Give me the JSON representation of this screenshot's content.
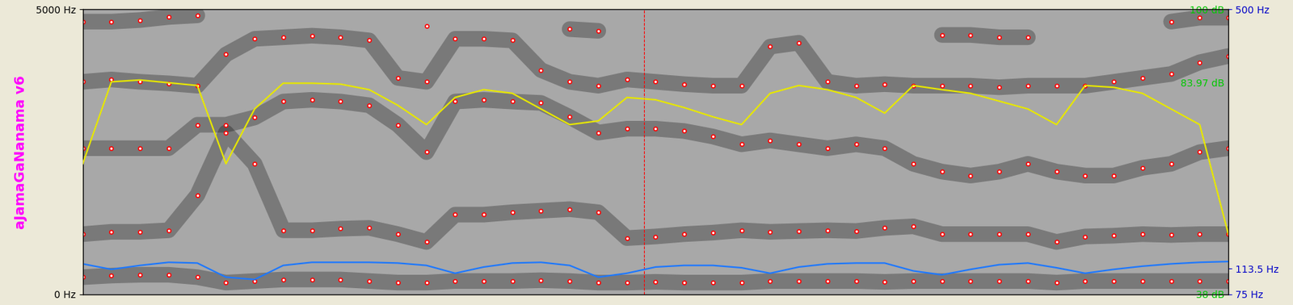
{
  "chart_data": {
    "type": "spectrogram",
    "title": "aJamaGaNanama v6",
    "x": [
      0,
      0.025,
      0.05,
      0.075,
      0.1,
      0.125,
      0.15,
      0.175,
      0.2,
      0.225,
      0.25,
      0.275,
      0.3,
      0.325,
      0.35,
      0.375,
      0.4,
      0.425,
      0.45,
      0.475,
      0.5,
      0.525,
      0.55,
      0.575,
      0.6,
      0.625,
      0.65,
      0.675,
      0.7,
      0.725,
      0.75,
      0.775,
      0.8,
      0.825,
      0.85,
      0.875,
      0.9,
      0.925,
      0.95,
      0.975,
      1
    ],
    "xlim": [
      0,
      1
    ],
    "ylim": [
      0,
      5000
    ],
    "yticks": [
      {
        "value": 0,
        "label": "0 Hz"
      },
      {
        "value": 5000,
        "label": "5000 Hz"
      }
    ],
    "y2lim": [
      75,
      500
    ],
    "y2ticks": [
      {
        "value": 75,
        "label": "75 Hz"
      },
      {
        "value": 113.5,
        "label": "113.5 Hz"
      },
      {
        "value": 500,
        "label": "500 Hz"
      }
    ],
    "y3lim": [
      38,
      100
    ],
    "y3ticks": [
      {
        "value": 38,
        "label": "38 dB"
      },
      {
        "value": 83.97,
        "label": "83.97 dB"
      },
      {
        "value": 100,
        "label": "100 dB"
      }
    ],
    "cursor_x": 0.49,
    "series": [
      {
        "type": "scatter",
        "color": "#ff0000",
        "marker": "o",
        "axis": "y",
        "values": [
          301,
          329,
          343,
          343,
          301,
          206,
          233,
          260,
          260,
          260,
          233,
          206,
          206,
          233,
          233,
          233,
          247,
          233,
          206,
          206,
          219,
          206,
          206,
          206,
          233,
          233,
          233,
          233,
          219,
          233,
          233,
          233,
          233,
          233,
          206,
          233,
          233,
          233,
          233,
          233,
          233
        ]
      },
      {
        "type": "scatter",
        "color": "#ff0000",
        "marker": "o",
        "axis": "y",
        "values": [
          1055,
          1096,
          1096,
          1123,
          1740,
          2836,
          2288,
          1123,
          1123,
          1151,
          1165,
          1055,
          918,
          1397,
          1397,
          1439,
          1466,
          1493,
          1439,
          986,
          1014,
          1055,
          1082,
          1123,
          1096,
          1110,
          1123,
          1110,
          1165,
          1192,
          1055,
          1055,
          1055,
          1055,
          918,
          1014,
          1028,
          1055,
          1041,
          1055,
          1055
        ]
      },
      {
        "type": "scatter",
        "color": "#ff0000",
        "marker": "o",
        "axis": "y",
        "values": [
          2562,
          2562,
          2562,
          2562,
          2973,
          2973,
          3100,
          3380,
          3410,
          3380,
          3315,
          2973,
          2493,
          3380,
          3410,
          3380,
          3356,
          3110,
          2836,
          2904,
          2904,
          2863,
          2767,
          2630,
          2699,
          2630,
          2562,
          2630,
          2562,
          2288,
          2151,
          2082,
          2151,
          2288,
          2151,
          2082,
          2082,
          2219,
          2288,
          2493,
          2562
        ]
      },
      {
        "type": "scatter",
        "color": "#ff0000",
        "marker": "o",
        "axis": "y",
        "values": [
          3726,
          3767,
          3726,
          3699,
          3658,
          4206,
          4480,
          4507,
          4535,
          4507,
          4452,
          3795,
          3726,
          4480,
          4480,
          4452,
          3932,
          3726,
          3658,
          3767,
          3726,
          3685,
          3658,
          3658,
          4343,
          4411,
          3726,
          3658,
          3685,
          3658,
          3658,
          3658,
          3630,
          3658,
          3658,
          3658,
          3726,
          3795,
          3863,
          4069,
          4178
        ]
      },
      {
        "type": "scatter",
        "color": "#ff0000",
        "marker": "o",
        "axis": "y",
        "values": [
          4781,
          4781,
          4809,
          4863,
          4891,
          null,
          null,
          null,
          null,
          null,
          null,
          null,
          4700,
          null,
          null,
          null,
          null,
          4650,
          4620,
          null,
          null,
          null,
          null,
          null,
          null,
          null,
          null,
          null,
          null,
          null,
          4548,
          4548,
          4507,
          4507,
          null,
          null,
          null,
          null,
          4781,
          4850,
          4850
        ]
      },
      {
        "type": "line",
        "color": "#1e78ff",
        "line_style": "solid",
        "axis": "y2",
        "values": [
          120.4,
          112.2,
          118.1,
          122.7,
          121.6,
          100.6,
          97.1,
          118.1,
          122.7,
          122.7,
          122.7,
          121.6,
          118.1,
          106.4,
          115.7,
          121.6,
          122.7,
          118.1,
          100.6,
          106.4,
          115.7,
          118.1,
          118.1,
          114.6,
          106.4,
          115.7,
          120.4,
          121.6,
          121.6,
          109.9,
          104.1,
          112.2,
          119.2,
          121.6,
          114.6,
          106.4,
          112.2,
          116.9,
          120.4,
          122.7,
          123.9
        ]
      },
      {
        "type": "line",
        "color": "#e6e600",
        "line_style": "solid",
        "axis": "y3",
        "values": [
          66.4,
          84.2,
          84.6,
          84.0,
          83.4,
          66.4,
          78.3,
          83.9,
          83.9,
          83.7,
          82.5,
          79.1,
          74.9,
          80.8,
          82.5,
          81.7,
          78.3,
          74.9,
          75.7,
          80.8,
          80.3,
          78.6,
          76.6,
          74.9,
          81.7,
          83.4,
          82.5,
          80.8,
          77.4,
          83.4,
          82.5,
          81.7,
          80.0,
          78.3,
          74.9,
          83.4,
          83.0,
          81.7,
          78.3,
          74.9,
          51.1
        ]
      }
    ]
  }
}
